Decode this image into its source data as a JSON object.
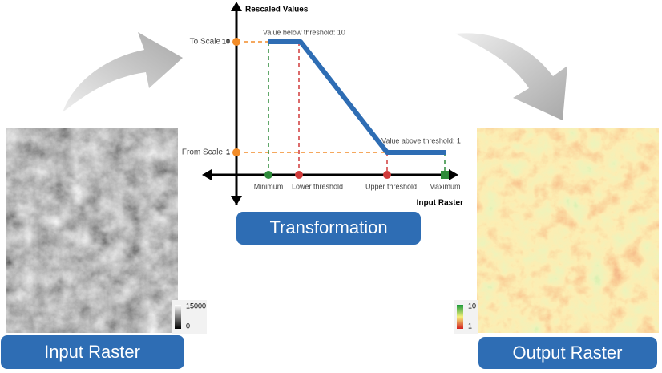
{
  "graph": {
    "y_axis_label": "Rescaled Values",
    "x_axis_label": "Input Raster",
    "to_scale": {
      "label": "To Scale",
      "value": "10"
    },
    "from_scale": {
      "label": "From Scale",
      "value": "1"
    },
    "annotations": [
      "Value below threshold: 10",
      "Value above threshold: 1"
    ],
    "x_points": [
      "Minimum",
      "Lower threshold",
      "Upper threshold",
      "Maximum"
    ]
  },
  "transformation": {
    "label": "Transformation"
  },
  "input": {
    "label": "Input Raster",
    "legend": {
      "max": "15000",
      "min": "0"
    }
  },
  "output": {
    "label": "Output Raster",
    "legend": {
      "max": "10",
      "min": "1"
    }
  }
}
